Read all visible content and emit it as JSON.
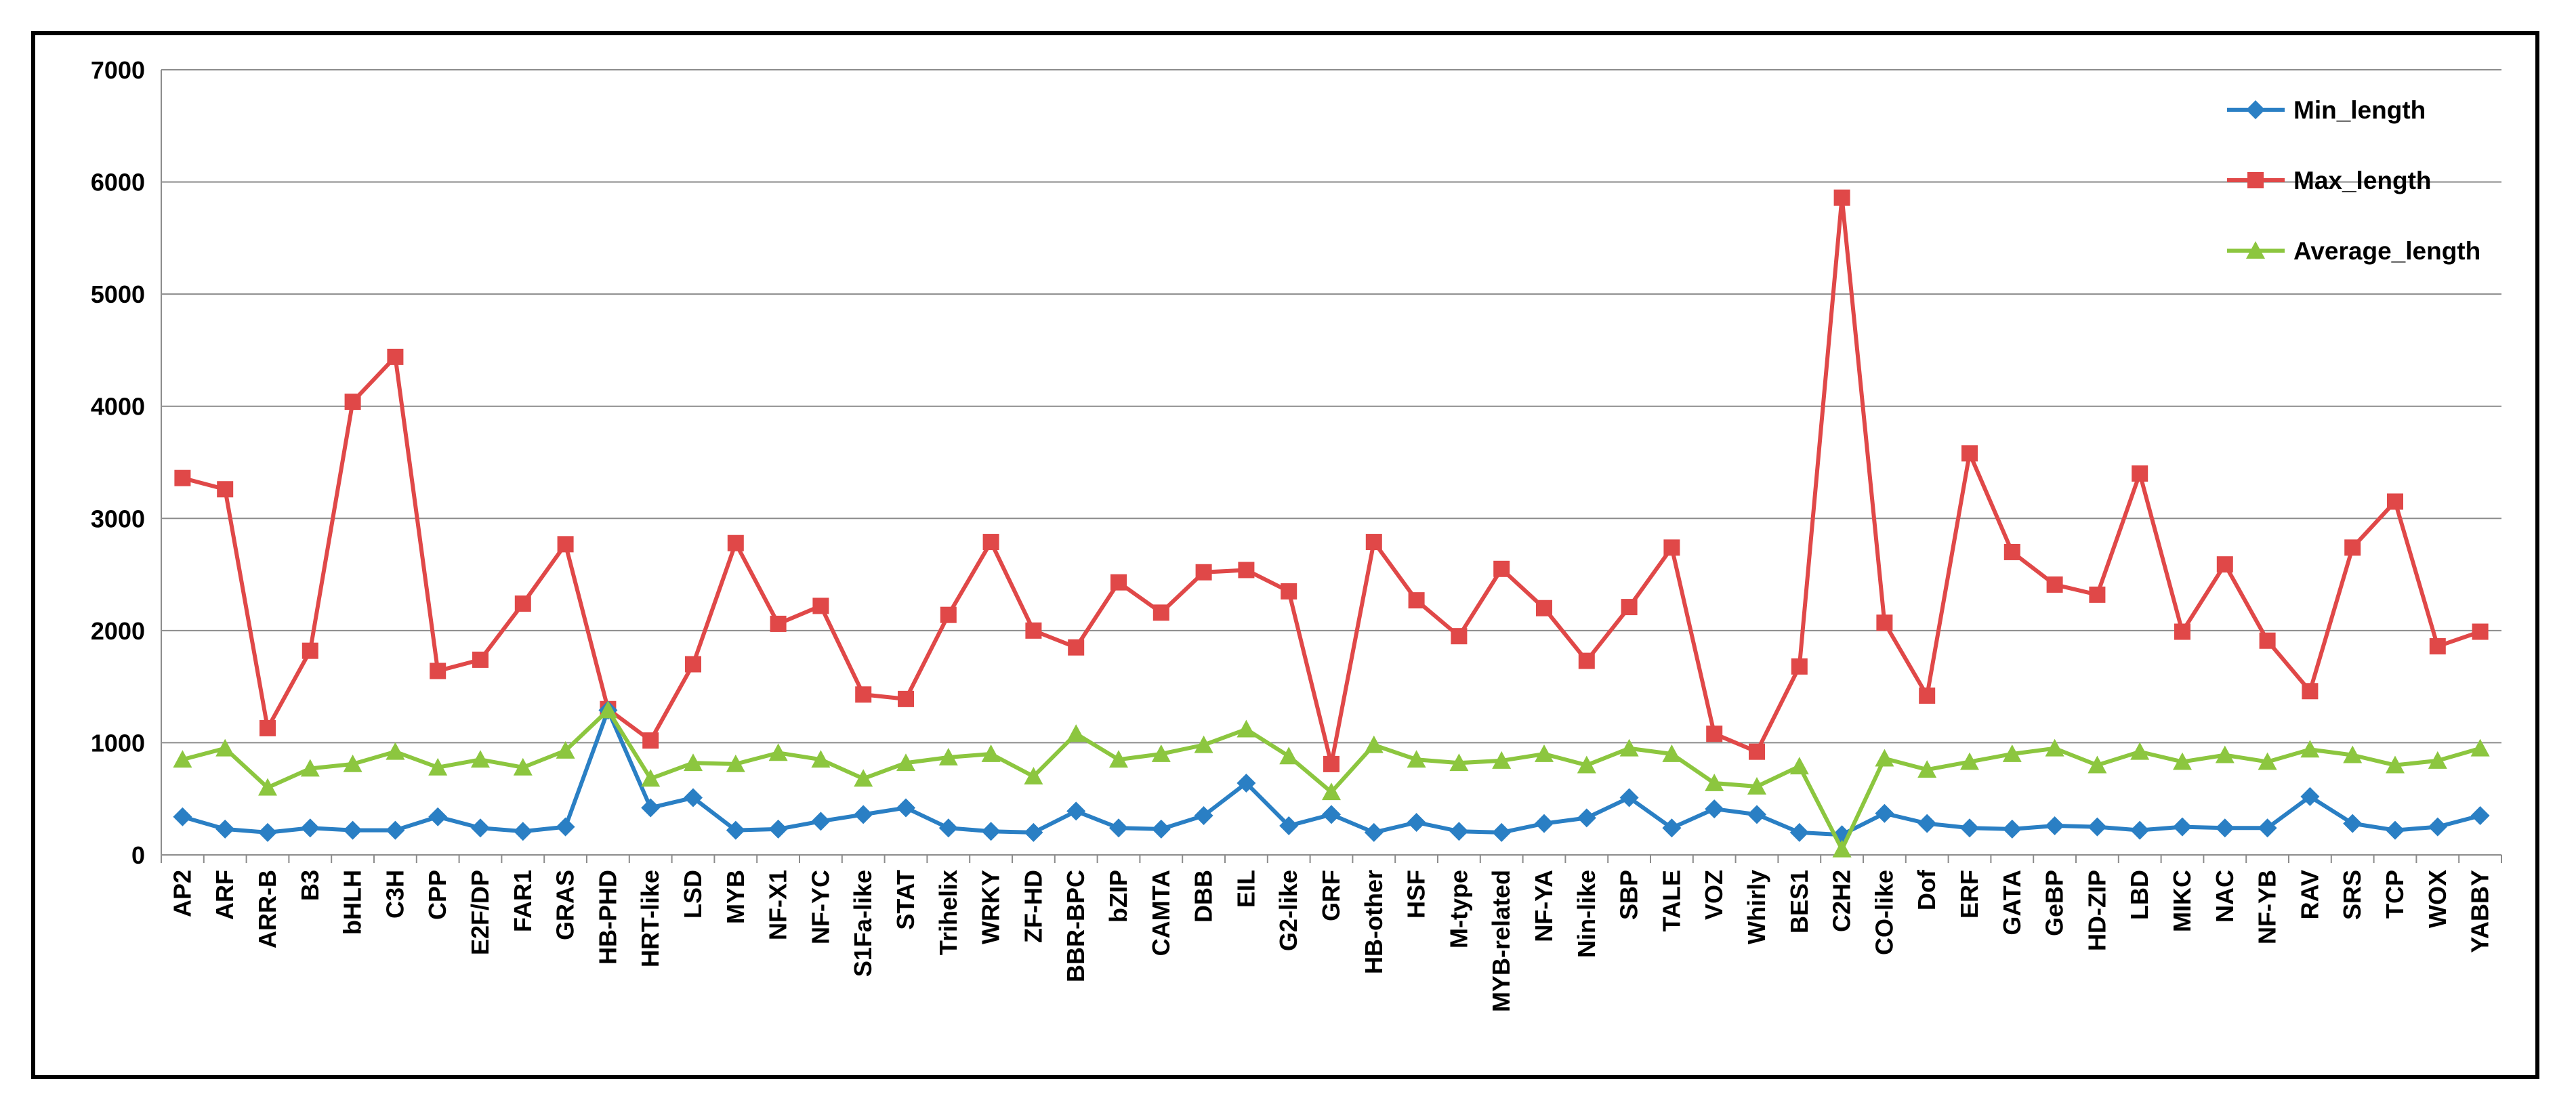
{
  "chart_data": {
    "type": "line",
    "title": "",
    "xlabel": "",
    "ylabel": "",
    "ylim": [
      0,
      7000
    ],
    "yticks": [
      0,
      1000,
      2000,
      3000,
      4000,
      5000,
      6000,
      7000
    ],
    "grid": true,
    "legend_position": "top-right",
    "categories": [
      "AP2",
      "ARF",
      "ARR-B",
      "B3",
      "bHLH",
      "C3H",
      "CPP",
      "E2F/DP",
      "FAR1",
      "GRAS",
      "HB-PHD",
      "HRT-like",
      "LSD",
      "MYB",
      "NF-X1",
      "NF-YC",
      "S1Fa-like",
      "STAT",
      "Trihelix",
      "WRKY",
      "ZF-HD",
      "BBR-BPC",
      "bZIP",
      "CAMTA",
      "DBB",
      "EIL",
      "G2-like",
      "GRF",
      "HB-other",
      "HSF",
      "M-type",
      "MYB-related",
      "NF-YA",
      "Nin-like",
      "SBP",
      "TALE",
      "VOZ",
      "Whirly",
      "BES1",
      "C2H2",
      "CO-like",
      "Dof",
      "ERF",
      "GATA",
      "GeBP",
      "HD-ZIP",
      "LBD",
      "MIKC",
      "NAC",
      "NF-YB",
      "RAV",
      "SRS",
      "TCP",
      "WOX",
      "YABBY"
    ],
    "series": [
      {
        "name": "Min_length",
        "color": "#2a7fc4",
        "marker": "diamond",
        "values": [
          340,
          230,
          200,
          240,
          220,
          220,
          340,
          240,
          210,
          250,
          1290,
          420,
          510,
          220,
          230,
          300,
          360,
          420,
          240,
          210,
          200,
          390,
          240,
          230,
          350,
          640,
          260,
          360,
          200,
          290,
          210,
          200,
          280,
          330,
          510,
          240,
          410,
          360,
          200,
          180,
          370,
          280,
          240,
          230,
          260,
          250,
          220,
          250,
          240,
          240,
          520,
          280,
          220,
          250,
          350
        ]
      },
      {
        "name": "Max_length",
        "color": "#e04848",
        "marker": "square",
        "values": [
          3360,
          3260,
          1130,
          1820,
          4040,
          4440,
          1640,
          1740,
          2240,
          2770,
          1300,
          1020,
          1700,
          2780,
          2060,
          2220,
          1430,
          1390,
          2140,
          2790,
          2000,
          1850,
          2430,
          2160,
          2520,
          2540,
          2350,
          810,
          2790,
          2270,
          1950,
          2550,
          2200,
          1730,
          2210,
          2740,
          1080,
          920,
          1680,
          5860,
          2070,
          1420,
          3580,
          2700,
          2410,
          2320,
          3400,
          1990,
          2590,
          1910,
          1460,
          2740,
          3150,
          1860,
          1990
        ]
      },
      {
        "name": "Average_length",
        "color": "#8cc63f",
        "marker": "triangle",
        "values": [
          850,
          950,
          600,
          770,
          810,
          920,
          780,
          850,
          780,
          930,
          1290,
          680,
          820,
          810,
          910,
          850,
          680,
          820,
          870,
          900,
          700,
          1080,
          850,
          900,
          980,
          1120,
          880,
          560,
          980,
          850,
          820,
          840,
          900,
          800,
          950,
          900,
          640,
          610,
          790,
          50,
          860,
          760,
          830,
          900,
          950,
          800,
          920,
          830,
          890,
          830,
          940,
          890,
          800,
          840,
          950
        ]
      }
    ]
  }
}
